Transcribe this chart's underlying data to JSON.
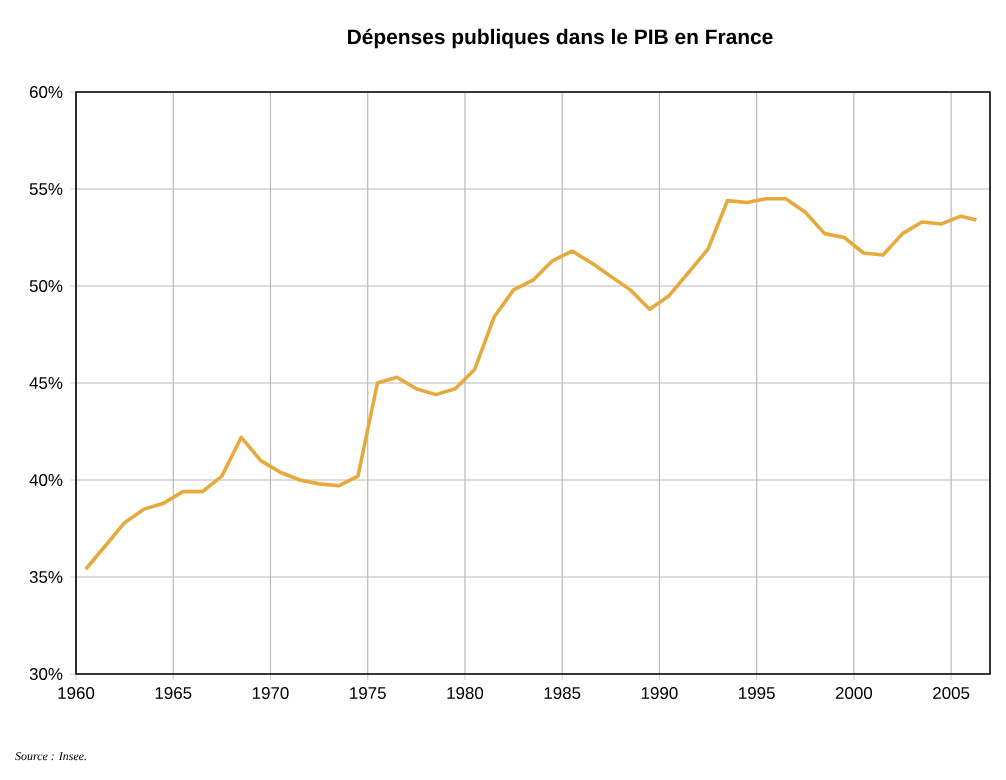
{
  "chart_data": {
    "type": "line",
    "title": "Dépenses publiques dans le PIB en France",
    "x": [
      1960.5,
      1961.5,
      1962.5,
      1963.5,
      1964.5,
      1965.5,
      1966.5,
      1967.5,
      1968.5,
      1969.5,
      1970.5,
      1971.5,
      1972.5,
      1973.5,
      1974.5,
      1975.5,
      1976.5,
      1977.5,
      1978.5,
      1979.5,
      1980.5,
      1981.5,
      1982.5,
      1983.5,
      1984.5,
      1985.5,
      1986.5,
      1987.5,
      1988.5,
      1989.5,
      1990.5,
      1991.5,
      1992.5,
      1993.5,
      1994.5,
      1995.5,
      1996.5,
      1997.5,
      1998.5,
      1999.5,
      2000.5,
      2001.5,
      2002.5,
      2003.5,
      2004.5,
      2005.5,
      2006.3
    ],
    "values": [
      35.4,
      36.6,
      37.8,
      38.5,
      38.8,
      39.4,
      39.4,
      40.2,
      42.2,
      41.0,
      40.4,
      40.0,
      39.8,
      39.7,
      40.2,
      45.0,
      45.3,
      44.7,
      44.4,
      44.7,
      45.7,
      48.4,
      49.8,
      50.3,
      51.3,
      51.8,
      51.2,
      50.5,
      49.8,
      48.8,
      49.5,
      50.7,
      51.9,
      54.4,
      54.3,
      54.5,
      54.5,
      53.8,
      52.7,
      52.5,
      51.7,
      51.6,
      52.7,
      53.3,
      53.2,
      53.6,
      53.4
    ],
    "color": "#e6aa3c",
    "xlim": [
      1960,
      2007
    ],
    "xticks": [
      1960,
      1965,
      1970,
      1975,
      1980,
      1985,
      1990,
      1995,
      2000,
      2005
    ],
    "ylim": [
      30,
      60
    ],
    "yticks": [
      {
        "value": 30,
        "label": "30%"
      },
      {
        "value": 35,
        "label": "35%"
      },
      {
        "value": 40,
        "label": "40%"
      },
      {
        "value": 45,
        "label": "45%"
      },
      {
        "value": 50,
        "label": "50%"
      },
      {
        "value": 55,
        "label": "55%"
      },
      {
        "value": 60,
        "label": "60%"
      }
    ],
    "grid": true,
    "legend": false,
    "marker": "none",
    "line_style": "solid",
    "annotations": [
      "Source : Insee."
    ]
  }
}
